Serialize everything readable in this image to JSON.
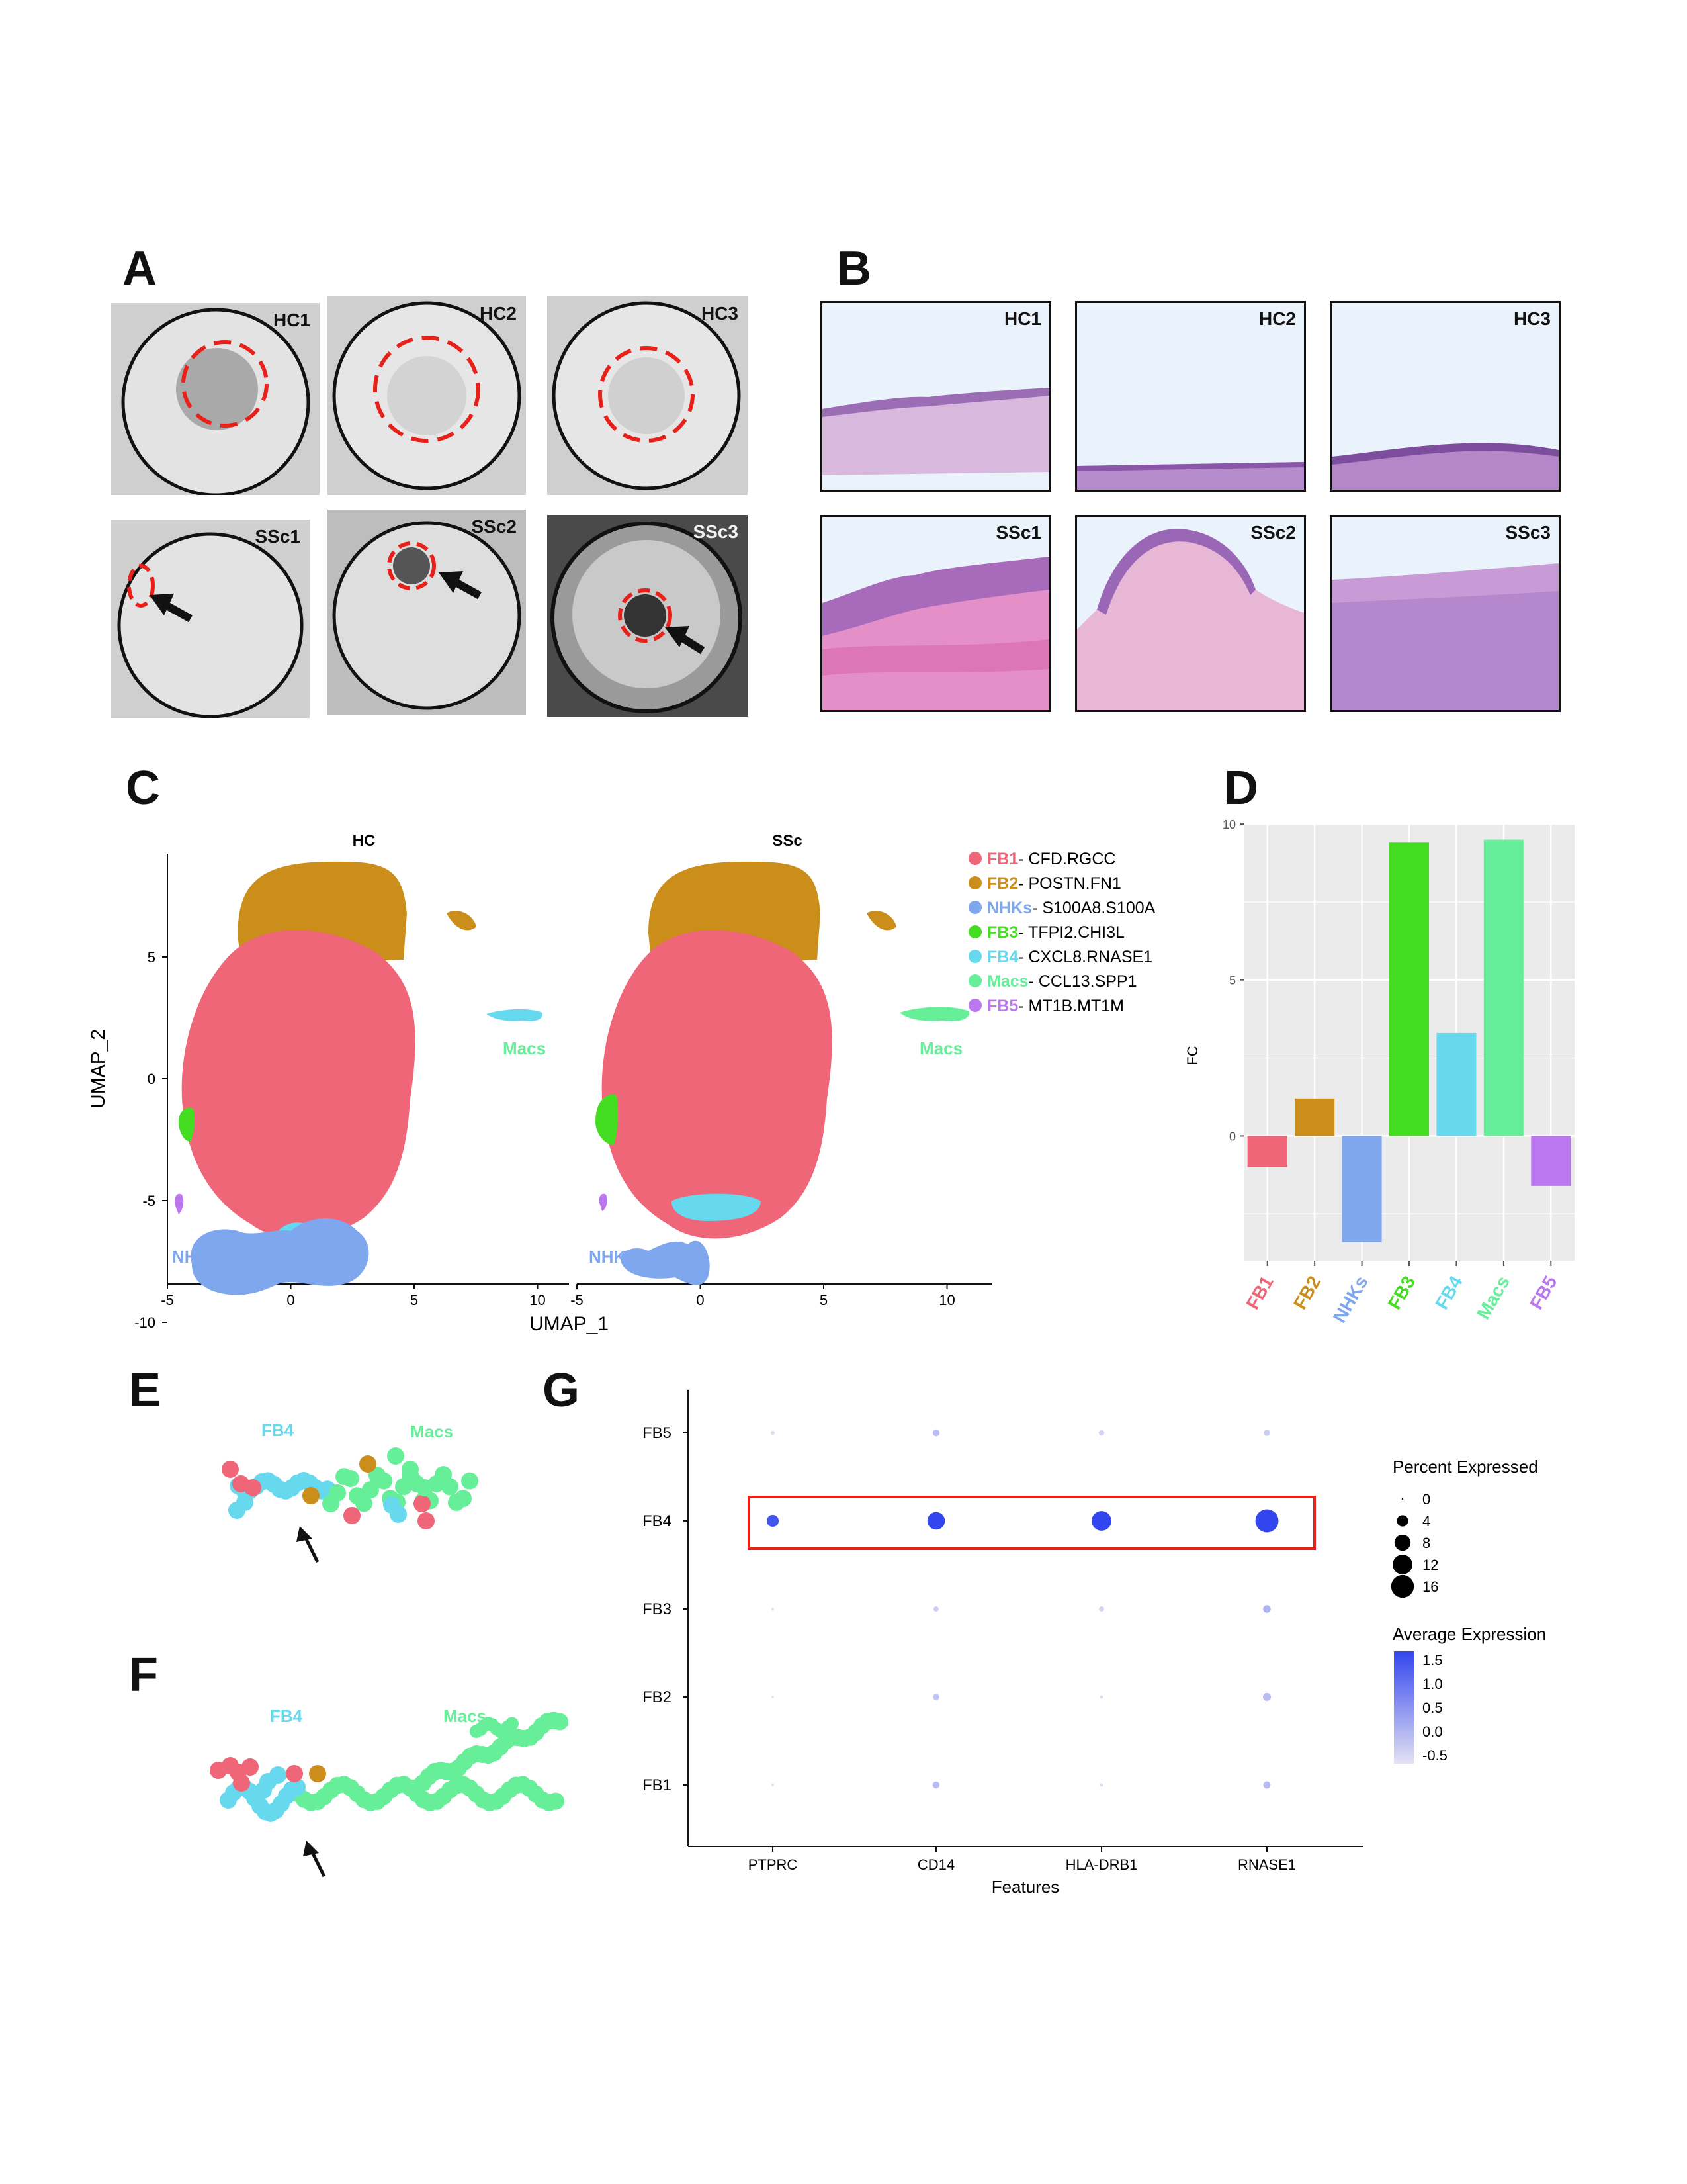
{
  "panels": {
    "A": "A",
    "B": "B",
    "C": "C",
    "D": "D",
    "E": "E",
    "F": "F",
    "G": "G"
  },
  "panel_a": {
    "samples": [
      "HC1",
      "HC2",
      "HC3",
      "SSc1",
      "SSc2",
      "SSc3"
    ]
  },
  "panel_b": {
    "samples": [
      "HC1",
      "HC2",
      "HC3",
      "SSc1",
      "SSc2",
      "SSc3"
    ]
  },
  "colors": {
    "FB1": "#ee6677",
    "FB2": "#cc8e1a",
    "NHKs": "#7fa7ee",
    "FB3": "#44dd22",
    "FB4": "#66d9ee",
    "Macs": "#66ee99",
    "FB5": "#bb77ee"
  },
  "chart_data": [
    {
      "type": "scatter",
      "panel": "C",
      "facets": [
        "HC",
        "SSc"
      ],
      "xlabel": "UMAP_1",
      "ylabel": "UMAP_2",
      "xticks": [
        "-5",
        "0",
        "5",
        "10"
      ],
      "yticks": [
        "5",
        "0",
        "-5",
        "-10"
      ],
      "xlim": [
        -5,
        11
      ],
      "ylim": [
        -10,
        6
      ],
      "cluster_labels": [
        "Macs",
        "NHKs"
      ],
      "legend": [
        {
          "key": "FB1",
          "label": "- CFD.RGCC"
        },
        {
          "key": "FB2",
          "label": "- POSTN.FN1"
        },
        {
          "key": "NHKs",
          "label": "- S100A8.S100A"
        },
        {
          "key": "FB3",
          "label": "- TFPI2.CHI3L"
        },
        {
          "key": "FB4",
          "label": "- CXCL8.RNASE1"
        },
        {
          "key": "Macs",
          "label": "- CCL13.SPP1"
        },
        {
          "key": "FB5",
          "label": "- MT1B.MT1M"
        }
      ]
    },
    {
      "type": "bar",
      "panel": "D",
      "categories": [
        "FB1",
        "FB2",
        "NHKs",
        "FB3",
        "FB4",
        "Macs",
        "FB5"
      ],
      "values": [
        -1.0,
        1.2,
        -3.4,
        9.4,
        3.3,
        9.5,
        -1.6
      ],
      "ylabel": "FC",
      "yticks": [
        "10",
        "5",
        "0"
      ],
      "ylim": [
        -4,
        10
      ],
      "grid": true
    },
    {
      "type": "scatter",
      "panel": "E",
      "labels": [
        "FB4",
        "Macs"
      ]
    },
    {
      "type": "scatter",
      "panel": "F",
      "labels": [
        "FB4",
        "Macs"
      ]
    },
    {
      "type": "scatter",
      "panel": "G",
      "subtype": "dotplot",
      "xlabel": "Features",
      "features": [
        "PTPRC",
        "CD14",
        "HLA-DRB1",
        "RNASE1"
      ],
      "clusters": [
        "FB5",
        "FB4",
        "FB3",
        "FB2",
        "FB1"
      ],
      "percent_expressed": [
        [
          0.5,
          1.5,
          1.0,
          1.2
        ],
        [
          4.5,
          9.5,
          12.0,
          16.5
        ],
        [
          0.2,
          0.8,
          0.8,
          1.8
        ],
        [
          0.2,
          1.2,
          0.3,
          2.0
        ],
        [
          0.2,
          1.5,
          0.3,
          1.6
        ]
      ],
      "average_expression": [
        [
          -0.4,
          0.0,
          -0.3,
          -0.2
        ],
        [
          1.3,
          1.5,
          1.6,
          1.6
        ],
        [
          -0.5,
          -0.2,
          -0.3,
          0.1
        ],
        [
          -0.5,
          -0.1,
          -0.4,
          0.0
        ],
        [
          -0.5,
          0.0,
          -0.4,
          0.0
        ]
      ],
      "highlight_row": "FB4",
      "size_legend": {
        "title": "Percent Expressed",
        "values": [
          "0",
          "4",
          "8",
          "12",
          "16"
        ]
      },
      "color_legend": {
        "title": "Average Expression",
        "values": [
          "1.5",
          "1.0",
          "0.5",
          "0.0",
          "-0.5"
        ],
        "low": "#e4e2f3",
        "high": "#3346ee"
      }
    }
  ]
}
